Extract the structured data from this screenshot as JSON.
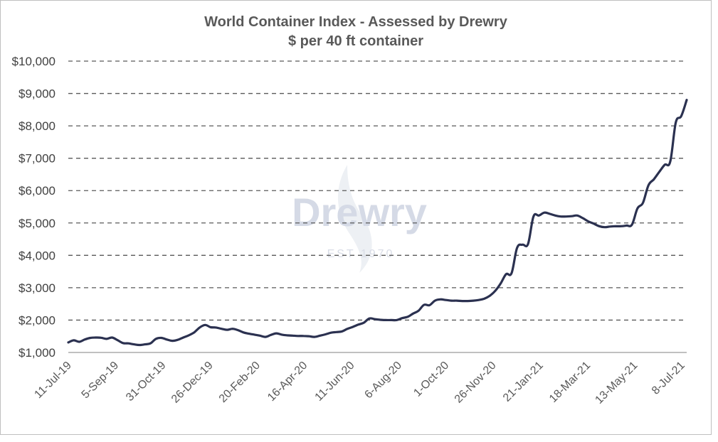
{
  "chart_data": {
    "type": "line",
    "title": "World Container Index - Assessed by Drewry",
    "subtitle": "$ per 40 ft container",
    "xlabel": "",
    "ylabel": "",
    "ylim": [
      1000,
      10000
    ],
    "y_ticks": [
      "$1,000",
      "$2,000",
      "$3,000",
      "$4,000",
      "$5,000",
      "$6,000",
      "$7,000",
      "$8,000",
      "$9,000",
      "$10,000"
    ],
    "x_ticks": [
      "11-Jul-19",
      "5-Sep-19",
      "31-Oct-19",
      "26-Dec-19",
      "20-Feb-20",
      "16-Apr-20",
      "11-Jun-20",
      "6-Aug-20",
      "1-Oct-20",
      "26-Nov-20",
      "21-Jan-21",
      "18-Mar-21",
      "13-May-21",
      "8-Jul-21"
    ],
    "grid": true,
    "grid_style": "dashed",
    "legend": "none",
    "line_color": "#2b3150",
    "series": [
      {
        "values": [
          1310,
          1375,
          1330,
          1400,
          1450,
          1460,
          1455,
          1420,
          1460,
          1380,
          1290,
          1280,
          1250,
          1230,
          1250,
          1280,
          1420,
          1450,
          1400,
          1360,
          1390,
          1460,
          1530,
          1620,
          1770,
          1850,
          1780,
          1770,
          1730,
          1700,
          1730,
          1690,
          1620,
          1580,
          1550,
          1520,
          1480,
          1540,
          1590,
          1550,
          1530,
          1520,
          1510,
          1510,
          1500,
          1480,
          1520,
          1560,
          1610,
          1630,
          1650,
          1730,
          1790,
          1860,
          1920,
          2050,
          2030,
          2010,
          2000,
          2000,
          2000,
          2060,
          2100,
          2200,
          2290,
          2470,
          2460,
          2600,
          2640,
          2620,
          2600,
          2600,
          2590,
          2590,
          2600,
          2620,
          2660,
          2750,
          2900,
          3130,
          3420,
          3450,
          4230,
          4330,
          4350,
          5200,
          5230,
          5320,
          5280,
          5230,
          5200,
          5200,
          5210,
          5230,
          5150,
          5050,
          4980,
          4900,
          4870,
          4890,
          4900,
          4900,
          4920,
          4950,
          5450,
          5620,
          6160,
          6350,
          6580,
          6800,
          6900,
          8100,
          8300,
          8800
        ]
      }
    ]
  },
  "watermark": {
    "brand": "Drewry",
    "est": "EST 1970"
  }
}
